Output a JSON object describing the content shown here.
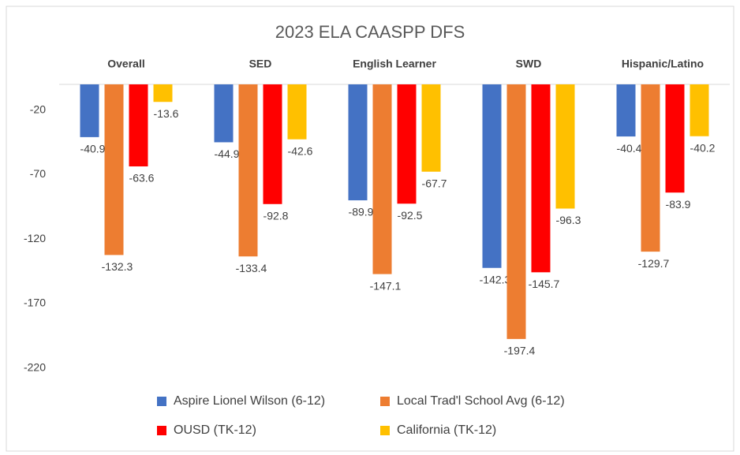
{
  "chart_data": {
    "type": "bar",
    "title": "2023 ELA CAASPP DFS",
    "categories": [
      "Overall",
      "SED",
      "English Learner",
      "SWD",
      "Hispanic/Latino"
    ],
    "series": [
      {
        "name": "Aspire Lionel Wilson (6-12)",
        "color": "#4472c4",
        "values": [
          -40.9,
          -44.9,
          -89.9,
          -142.3,
          -40.4
        ]
      },
      {
        "name": "Local Trad'l School Avg (6-12)",
        "color": "#ed7d31",
        "values": [
          -132.3,
          -133.4,
          -147.1,
          -197.4,
          -129.7
        ]
      },
      {
        "name": "OUSD (TK-12)",
        "color": "#ff0000",
        "values": [
          -63.6,
          -92.8,
          -92.5,
          -145.7,
          -83.9
        ]
      },
      {
        "name": "California (TK-12)",
        "color": "#ffc000",
        "values": [
          -13.6,
          -42.6,
          -67.7,
          -96.3,
          -40.2
        ]
      }
    ],
    "ylim": [
      -225,
      0
    ],
    "yticks": [
      -20,
      -70,
      -120,
      -170,
      -220
    ],
    "grid": false,
    "legend": "bottom"
  }
}
